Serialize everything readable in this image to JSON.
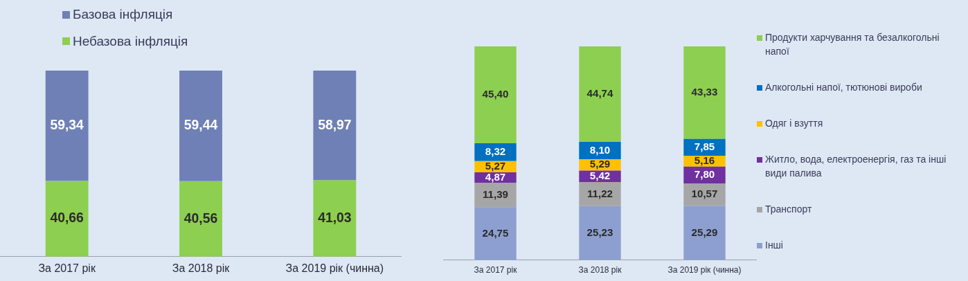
{
  "chart_data": [
    {
      "type": "bar",
      "stacked": true,
      "categories": [
        "За 2017 рік",
        "За 2018 рік",
        "За 2019 рік (чинна)"
      ],
      "ylim": [
        0,
        100
      ],
      "tick_labels": "x",
      "grid": false,
      "legend": "top left",
      "series": [
        {
          "name": "Небазова інфляція",
          "color": "#8dcf50",
          "values": [
            40.66,
            40.56,
            41.03
          ],
          "value_labels": [
            "40,66",
            "40,56",
            "41,03"
          ]
        },
        {
          "name": "Базова інфляція",
          "color": "#6f80b6",
          "values": [
            59.34,
            59.44,
            58.97
          ],
          "value_labels": [
            "59,34",
            "59,44",
            "58,97"
          ]
        }
      ]
    },
    {
      "type": "bar",
      "stacked": true,
      "categories": [
        "За 2017 рік",
        "За 2018 рік",
        "За 2019 рік (чинна)"
      ],
      "ylim": [
        0,
        100
      ],
      "tick_labels": "x",
      "grid": false,
      "legend": "right",
      "series": [
        {
          "name": "Інші",
          "color": "#8c9fd0",
          "values": [
            24.75,
            25.23,
            25.29
          ],
          "value_labels": [
            "24,75",
            "25,23",
            "25,29"
          ]
        },
        {
          "name": "Транспорт",
          "color": "#a6a6a6",
          "values": [
            11.39,
            11.22,
            10.57
          ],
          "value_labels": [
            "11,39",
            "11,22",
            "10,57"
          ]
        },
        {
          "name": "Житло, вода, електроенергія, газ та інші види палива",
          "color": "#7030a0",
          "values": [
            4.87,
            5.42,
            7.8
          ],
          "value_labels": [
            "4,87",
            "5,42",
            "7,80"
          ]
        },
        {
          "name": "Одяг і взуття",
          "color": "#ffc000",
          "values": [
            5.27,
            5.29,
            5.16
          ],
          "value_labels": [
            "5,27",
            "5,29",
            "5,16"
          ]
        },
        {
          "name": "Алкогольні напої, тютюнові вироби",
          "color": "#0070c0",
          "values": [
            8.32,
            8.1,
            7.85
          ],
          "value_labels": [
            "8,32",
            "8,10",
            "7,85"
          ]
        },
        {
          "name": "Продукти харчування та безалкогольні напої",
          "color": "#8dcf50",
          "values": [
            45.4,
            44.74,
            43.33
          ],
          "value_labels": [
            "45,40",
            "44,74",
            "43,33"
          ]
        }
      ]
    }
  ]
}
